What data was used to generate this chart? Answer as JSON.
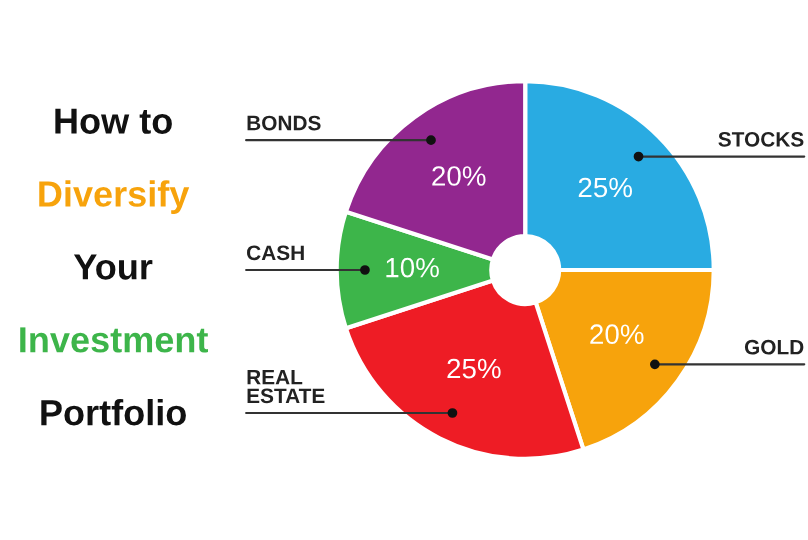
{
  "chart_data": {
    "type": "donut",
    "title": "How to\nDiversify\nYour\nInvestment\nPortfolio",
    "categories": [
      "STOCKS",
      "GOLD",
      "REAL\nESTATE",
      "CASH",
      "BONDS"
    ],
    "values": [
      25,
      20,
      25,
      10,
      20
    ],
    "value_labels": [
      "25%",
      "20%",
      "25%",
      "10%",
      "20%"
    ],
    "colors": [
      "#29abe2",
      "#f7a30c",
      "#ee1c25",
      "#3db54a",
      "#92278f"
    ]
  }
}
